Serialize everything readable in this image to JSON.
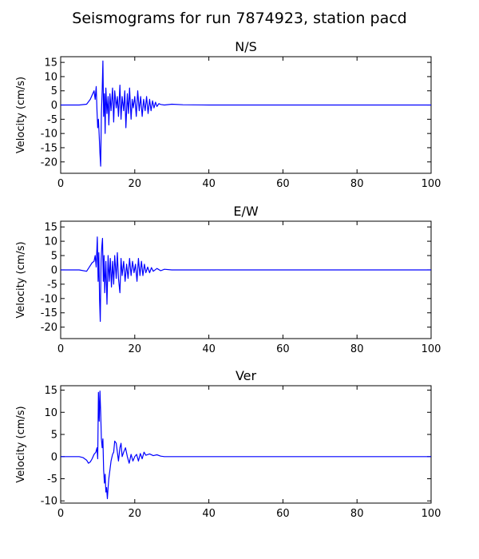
{
  "figure": {
    "suptitle": "Seismograms for run 7874923, station pacd"
  },
  "chart_data": [
    {
      "type": "line",
      "title": "N/S",
      "xlabel": "",
      "ylabel": "Velocity (cm/s)",
      "xlim": [
        0,
        100
      ],
      "ylim": [
        -24,
        17
      ],
      "xticks": [
        0,
        20,
        40,
        60,
        80,
        100
      ],
      "yticks": [
        -20,
        -15,
        -10,
        -5,
        0,
        5,
        10,
        15
      ],
      "line_color": "#0000ff",
      "x": [
        0,
        5,
        7,
        8,
        8.5,
        9,
        9.3,
        9.6,
        9.8,
        10,
        10.2,
        10.4,
        10.6,
        10.8,
        11,
        11.2,
        11.4,
        11.6,
        11.8,
        12,
        12.2,
        12.5,
        12.8,
        13,
        13.3,
        13.6,
        14,
        14.3,
        14.6,
        15,
        15.3,
        15.6,
        16,
        16.3,
        16.6,
        17,
        17.3,
        17.6,
        18,
        18.3,
        18.6,
        19,
        19.3,
        19.6,
        20,
        20.4,
        20.8,
        21.2,
        21.6,
        22,
        22.4,
        22.8,
        23.2,
        23.6,
        24,
        24.4,
        24.8,
        25.2,
        25.6,
        26,
        26.5,
        27,
        28,
        30,
        33,
        40,
        60,
        80,
        100
      ],
      "y": [
        0,
        0,
        0.3,
        2,
        3.5,
        5,
        2,
        6.5,
        -2,
        -8,
        -5,
        -11,
        -17,
        -21.5,
        -3,
        5,
        15.5,
        -4,
        4,
        -10,
        6,
        -3,
        3,
        -7,
        4,
        -2,
        6,
        -6,
        5,
        -1,
        3,
        -4,
        7,
        -5,
        3,
        -2,
        5,
        -8,
        4,
        -3,
        6,
        -5,
        2,
        -1,
        3,
        -4,
        5,
        -2,
        3,
        -4,
        2,
        -2,
        3,
        -3,
        2,
        -2,
        1.5,
        -1,
        1,
        -0.5,
        0.5,
        0.2,
        0,
        0.3,
        0.1,
        0,
        0,
        0,
        0
      ]
    },
    {
      "type": "line",
      "title": "E/W",
      "xlabel": "",
      "ylabel": "Velocity (cm/s)",
      "xlim": [
        0,
        100
      ],
      "ylim": [
        -24,
        17
      ],
      "xticks": [
        0,
        20,
        40,
        60,
        80,
        100
      ],
      "yticks": [
        -20,
        -15,
        -10,
        -5,
        0,
        5,
        10,
        15
      ],
      "line_color": "#0000ff",
      "x": [
        0,
        5,
        7,
        8,
        8.5,
        9,
        9.3,
        9.6,
        9.9,
        10.1,
        10.3,
        10.5,
        10.7,
        10.9,
        11.1,
        11.3,
        11.5,
        11.7,
        11.9,
        12.2,
        12.5,
        12.8,
        13.1,
        13.4,
        13.7,
        14,
        14.3,
        14.6,
        15,
        15.3,
        15.6,
        16,
        16.3,
        16.6,
        17,
        17.4,
        17.8,
        18.2,
        18.6,
        19,
        19.4,
        19.8,
        20.2,
        20.6,
        21,
        21.4,
        21.8,
        22.2,
        22.6,
        23,
        23.5,
        24,
        24.5,
        25,
        26,
        27,
        28,
        30,
        35,
        40,
        60,
        80,
        100
      ],
      "y": [
        0,
        0,
        -0.5,
        1.5,
        2.5,
        3,
        5,
        1,
        11.5,
        -4,
        6,
        -10,
        -18,
        3,
        8,
        11,
        -4,
        5,
        -8,
        3,
        -12,
        5,
        -4,
        4,
        -6,
        3,
        -5,
        5,
        -3,
        6,
        -3,
        -8,
        4,
        -2,
        3,
        -4,
        2,
        -3,
        4,
        -2,
        3,
        -1,
        2,
        -4,
        4,
        -2,
        3,
        -2,
        2,
        -1,
        1,
        -1,
        0.8,
        -0.5,
        0.5,
        -0.3,
        0.2,
        0,
        0,
        0,
        0,
        0,
        0
      ]
    },
    {
      "type": "line",
      "title": "Ver",
      "xlabel": "",
      "ylabel": "Velocity (cm/s)",
      "xlim": [
        0,
        100
      ],
      "ylim": [
        -10.5,
        16
      ],
      "xticks": [
        0,
        20,
        40,
        60,
        80,
        100
      ],
      "yticks": [
        -10,
        -5,
        0,
        5,
        10,
        15
      ],
      "line_color": "#0000ff",
      "x": [
        0,
        5,
        6,
        7,
        7.5,
        8,
        8.5,
        9,
        9.5,
        9.8,
        10,
        10.2,
        10.4,
        10.6,
        10.8,
        11,
        11.2,
        11.4,
        11.6,
        11.8,
        12,
        12.2,
        12.4,
        12.6,
        12.8,
        13,
        13.3,
        13.6,
        14,
        14.3,
        14.6,
        15,
        15.3,
        15.6,
        16,
        16.3,
        16.6,
        17,
        17.5,
        18,
        18.5,
        19,
        19.5,
        20,
        20.5,
        21,
        21.5,
        22,
        22.5,
        23,
        24,
        25,
        26,
        27,
        28,
        30,
        40,
        60,
        80,
        100
      ],
      "y": [
        0,
        0,
        -0.2,
        -0.8,
        -1.5,
        -1.2,
        -0.5,
        0.5,
        1,
        2,
        -0.5,
        14.5,
        8,
        14.8,
        10,
        4,
        2,
        4,
        -3,
        -6,
        -4,
        -8,
        -7,
        -9.5,
        -7,
        -5,
        -3,
        -1,
        0.5,
        1,
        3.5,
        3,
        1,
        -1,
        2,
        3,
        0,
        1,
        2,
        0,
        -1.5,
        0.5,
        -1,
        0,
        0.5,
        -1,
        0.7,
        -0.5,
        1,
        0.3,
        0.6,
        0.2,
        0.4,
        0.1,
        0,
        0,
        0,
        0,
        0,
        0
      ]
    }
  ]
}
